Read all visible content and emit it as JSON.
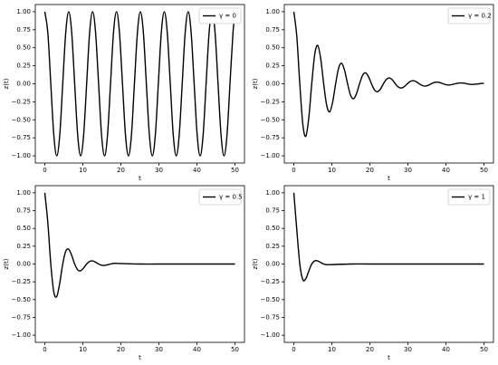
{
  "chart_data": [
    {
      "type": "line",
      "xlabel": "t",
      "ylabel": "z(t)",
      "legend": "upper right",
      "xlim": [
        -2.5,
        52.5
      ],
      "ylim": [
        -1.1,
        1.1
      ],
      "xticks": [
        0,
        10,
        20,
        30,
        40,
        50
      ],
      "yticks": [
        {
          "value": -1,
          "label": "−1.00"
        },
        {
          "value": -0.75,
          "label": "−0.75"
        },
        {
          "value": -0.5,
          "label": "−0.50"
        },
        {
          "value": -0.25,
          "label": "−0.25"
        },
        {
          "value": 0,
          "label": "0.00"
        },
        {
          "value": 0.25,
          "label": "0.25"
        },
        {
          "value": 0.5,
          "label": "0.50"
        },
        {
          "value": 0.75,
          "label": "0.75"
        },
        {
          "value": 1,
          "label": "1.00"
        }
      ],
      "x": [
        0,
        0.79,
        1.57,
        2.36,
        3.14,
        3.93,
        4.71,
        5.5,
        6.28,
        7.07,
        7.85,
        8.64,
        9.42,
        10.21,
        11.0,
        11.78,
        12.57,
        13.35,
        14.14,
        14.92,
        15.71,
        16.49,
        17.28,
        18.06,
        18.85,
        19.63,
        20.42,
        21.21,
        21.99,
        22.78,
        23.56,
        24.35,
        25.13,
        25.92,
        26.7,
        27.49,
        28.27,
        29.06,
        29.85,
        30.63,
        31.42,
        32.2,
        32.99,
        33.77,
        34.56,
        35.34,
        36.13,
        36.91,
        37.7,
        38.48,
        39.27,
        40.06,
        40.84,
        41.63,
        42.41,
        43.2,
        43.98,
        44.77,
        45.55,
        46.34,
        47.12,
        47.91,
        48.69,
        49.48,
        50
      ],
      "series": [
        {
          "name": "γ = 0",
          "color": "#000000",
          "values": [
            1,
            0.71,
            0,
            -0.71,
            -1,
            -0.71,
            0,
            0.71,
            1,
            0.71,
            0,
            -0.71,
            -1,
            -0.71,
            0,
            0.71,
            1,
            0.71,
            0,
            -0.71,
            -1,
            -0.71,
            0,
            0.71,
            1,
            0.71,
            0,
            -0.71,
            -1,
            -0.71,
            0,
            0.71,
            1,
            0.71,
            0,
            -0.71,
            -1,
            -0.71,
            0,
            0.71,
            1,
            0.71,
            0,
            -0.71,
            -1,
            -0.71,
            0,
            0.71,
            1,
            0.71,
            0,
            -0.71,
            -1,
            -0.71,
            0,
            0.71,
            1,
            0.71,
            0,
            -0.71,
            -1,
            -0.71,
            0,
            0.71,
            0.96
          ]
        }
      ]
    },
    {
      "type": "line",
      "xlabel": "t",
      "ylabel": "z(t)",
      "legend": "upper right",
      "xlim": [
        -2.5,
        52.5
      ],
      "ylim": [
        -1.1,
        1.1
      ],
      "xticks": [
        0,
        10,
        20,
        30,
        40,
        50
      ],
      "yticks": [
        {
          "value": -1,
          "label": "−1.00"
        },
        {
          "value": -0.75,
          "label": "−0.75"
        },
        {
          "value": -0.5,
          "label": "−0.50"
        },
        {
          "value": -0.25,
          "label": "−0.25"
        },
        {
          "value": 0,
          "label": "0.00"
        },
        {
          "value": 0.25,
          "label": "0.25"
        },
        {
          "value": 0.5,
          "label": "0.50"
        },
        {
          "value": 0.75,
          "label": "0.75"
        },
        {
          "value": 1,
          "label": "1.00"
        }
      ],
      "x": [
        0,
        0.79,
        1.57,
        2.36,
        3.14,
        3.93,
        4.71,
        5.5,
        6.28,
        7.07,
        7.85,
        8.64,
        9.42,
        10.21,
        11.0,
        11.78,
        12.57,
        13.35,
        14.14,
        14.92,
        15.71,
        16.49,
        17.28,
        18.06,
        18.85,
        19.63,
        20.42,
        21.21,
        21.99,
        22.78,
        23.56,
        24.35,
        25.13,
        25.92,
        26.7,
        27.49,
        28.27,
        29.06,
        29.85,
        30.63,
        31.42,
        32.2,
        32.99,
        33.77,
        34.56,
        35.34,
        36.13,
        36.91,
        37.7,
        38.48,
        39.27,
        40.06,
        40.84,
        41.63,
        42.41,
        43.2,
        43.98,
        44.77,
        45.55,
        46.34,
        47.12,
        47.91,
        48.69,
        49.48,
        50
      ],
      "series": [
        {
          "name": "γ = 0.2",
          "color": "#000000",
          "values": [
            1,
            0.654,
            0,
            -0.559,
            -0.73,
            -0.477,
            0,
            0.408,
            0.533,
            0.349,
            0,
            -0.298,
            -0.39,
            -0.255,
            0,
            0.218,
            0.285,
            0.186,
            0,
            -0.159,
            -0.208,
            -0.136,
            0,
            0.116,
            0.152,
            0.099,
            0,
            -0.085,
            -0.111,
            -0.073,
            0,
            0.062,
            0.081,
            0.053,
            0,
            -0.045,
            -0.059,
            -0.039,
            0,
            0.033,
            0.043,
            0.028,
            0,
            -0.024,
            -0.032,
            -0.021,
            0,
            0.018,
            0.023,
            0.015,
            0,
            -0.013,
            -0.017,
            -0.011,
            0,
            0.009,
            0.012,
            0.008,
            0,
            -0.007,
            -0.009,
            -0.006,
            0,
            0.005,
            0.006
          ]
        }
      ]
    },
    {
      "type": "line",
      "xlabel": "t",
      "ylabel": "z(t)",
      "legend": "upper right",
      "xlim": [
        -2.5,
        52.5
      ],
      "ylim": [
        -1.1,
        1.1
      ],
      "xticks": [
        0,
        10,
        20,
        30,
        40,
        50
      ],
      "yticks": [
        {
          "value": -1,
          "label": "−1.00"
        },
        {
          "value": -0.75,
          "label": "−0.75"
        },
        {
          "value": -0.5,
          "label": "−0.50"
        },
        {
          "value": -0.25,
          "label": "−0.25"
        },
        {
          "value": 0,
          "label": "0.00"
        },
        {
          "value": 0.25,
          "label": "0.25"
        },
        {
          "value": 0.5,
          "label": "0.50"
        },
        {
          "value": 0.75,
          "label": "0.75"
        },
        {
          "value": 1,
          "label": "1.00"
        }
      ],
      "x": [
        0,
        0.79,
        1.57,
        2.36,
        3.14,
        3.93,
        4.71,
        5.5,
        6.28,
        7.07,
        7.85,
        8.64,
        9.42,
        10.21,
        11.0,
        11.78,
        12.57,
        13.35,
        14.14,
        14.92,
        15.71,
        16.49,
        17.28,
        18.06,
        18.85,
        25,
        30,
        40,
        50
      ],
      "series": [
        {
          "name": "γ = 0.5",
          "color": "#000000",
          "values": [
            1,
            0.581,
            0,
            -0.392,
            -0.456,
            -0.265,
            0,
            0.179,
            0.208,
            0.121,
            0,
            -0.082,
            -0.095,
            -0.055,
            0,
            0.037,
            0.043,
            0.025,
            0,
            -0.017,
            -0.02,
            -0.011,
            0,
            0.008,
            0.009,
            0,
            0,
            0,
            0
          ]
        }
      ]
    },
    {
      "type": "line",
      "xlabel": "t",
      "ylabel": "z(t)",
      "legend": "upper right",
      "xlim": [
        -2.5,
        52.5
      ],
      "ylim": [
        -1.1,
        1.1
      ],
      "xticks": [
        0,
        10,
        20,
        30,
        40,
        50
      ],
      "yticks": [
        {
          "value": -1,
          "label": "−1.00"
        },
        {
          "value": -0.75,
          "label": "−0.75"
        },
        {
          "value": -0.5,
          "label": "−0.50"
        },
        {
          "value": -0.25,
          "label": "−0.25"
        },
        {
          "value": 0,
          "label": "0.00"
        },
        {
          "value": 0.25,
          "label": "0.25"
        },
        {
          "value": 0.5,
          "label": "0.50"
        },
        {
          "value": 0.75,
          "label": "0.75"
        },
        {
          "value": 1,
          "label": "1.00"
        }
      ],
      "x": [
        0,
        0.79,
        1.57,
        2.36,
        3.14,
        3.93,
        4.71,
        5.5,
        6.28,
        7.07,
        7.85,
        8.64,
        9.42,
        15,
        20,
        30,
        40,
        50
      ],
      "series": [
        {
          "name": "γ = 1",
          "color": "#000000",
          "values": [
            1,
            0.477,
            0,
            -0.218,
            -0.208,
            -0.1,
            0,
            0.045,
            0.043,
            0.021,
            0,
            -0.009,
            -0.009,
            0,
            0,
            0,
            0,
            0
          ]
        }
      ]
    }
  ]
}
